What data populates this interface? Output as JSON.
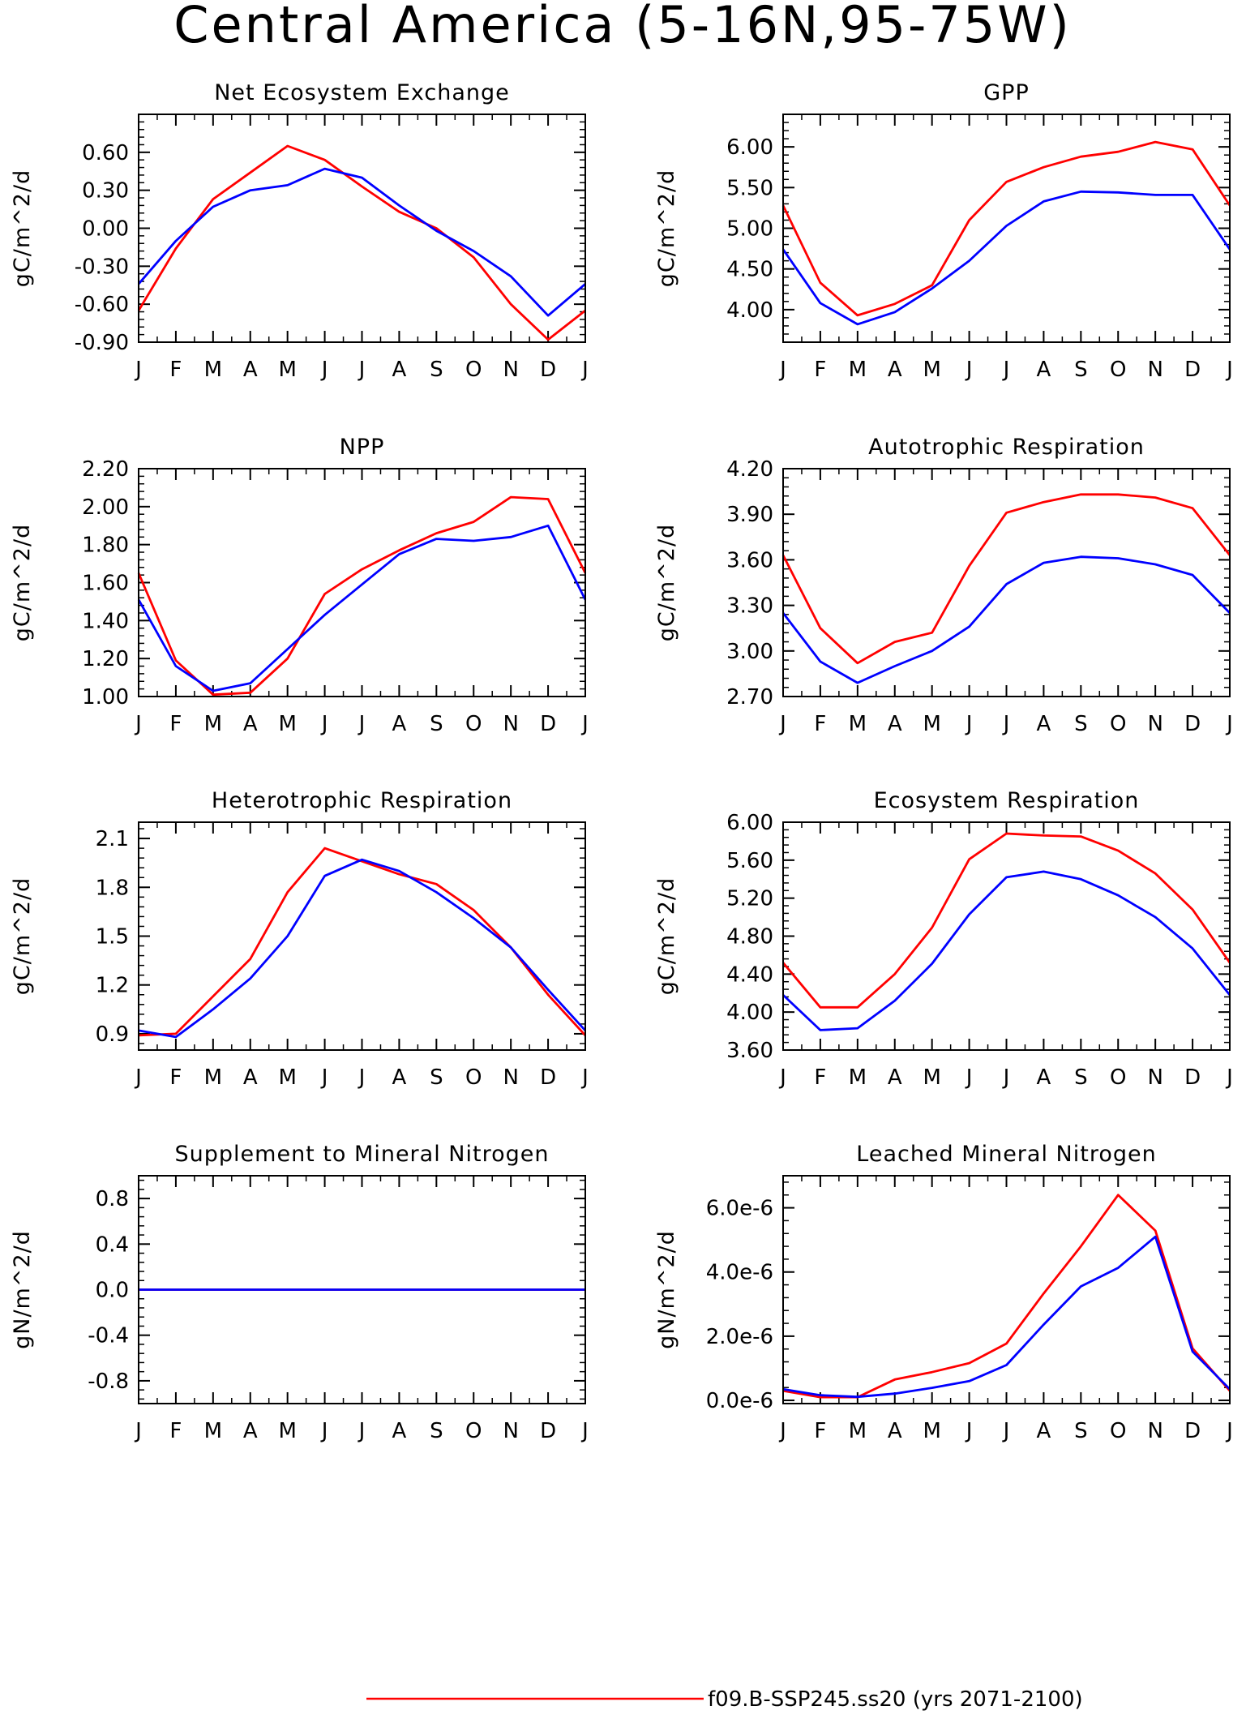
{
  "figure_title": "Central America (5-16N,95-75W)",
  "legend": [
    {
      "label": "f09.B-SSP245.ss20 (yrs 2071-2100)",
      "color": "#ff0000"
    }
  ],
  "colors": {
    "series_red": "#ff0000",
    "series_blue": "#0000ff"
  },
  "chart_data": [
    {
      "type": "line",
      "title": "Net Ecosystem Exchange",
      "ylabel": "gC/m^2/d",
      "categories": [
        "J",
        "F",
        "M",
        "A",
        "M",
        "J",
        "J",
        "A",
        "S",
        "O",
        "N",
        "D",
        "J"
      ],
      "ylim": [
        -0.9,
        0.9
      ],
      "yticks": [
        -0.9,
        -0.6,
        -0.3,
        0.0,
        0.3,
        0.6
      ],
      "ytick_labels": [
        "-0.90",
        "-0.60",
        "-0.30",
        "0.00",
        "0.30",
        "0.60"
      ],
      "series": [
        {
          "color": "#ff0000",
          "values": [
            -0.65,
            -0.16,
            0.23,
            0.44,
            0.65,
            0.54,
            0.33,
            0.13,
            0.0,
            -0.23,
            -0.6,
            -0.88,
            -0.65
          ]
        },
        {
          "color": "#0000ff",
          "values": [
            -0.44,
            -0.1,
            0.17,
            0.3,
            0.34,
            0.47,
            0.4,
            0.18,
            -0.02,
            -0.18,
            -0.38,
            -0.69,
            -0.44
          ]
        }
      ]
    },
    {
      "type": "line",
      "title": "GPP",
      "ylabel": "gC/m^2/d",
      "categories": [
        "J",
        "F",
        "M",
        "A",
        "M",
        "J",
        "J",
        "A",
        "S",
        "O",
        "N",
        "D",
        "J"
      ],
      "ylim": [
        3.6,
        6.4
      ],
      "yticks": [
        4.0,
        4.5,
        5.0,
        5.5,
        6.0
      ],
      "ytick_labels": [
        "4.00",
        "4.50",
        "5.00",
        "5.50",
        "6.00"
      ],
      "series": [
        {
          "color": "#ff0000",
          "values": [
            5.28,
            4.33,
            3.93,
            4.07,
            4.3,
            5.1,
            5.57,
            5.75,
            5.88,
            5.94,
            6.06,
            5.97,
            5.28
          ]
        },
        {
          "color": "#0000ff",
          "values": [
            4.74,
            4.08,
            3.82,
            3.97,
            4.26,
            4.6,
            5.03,
            5.33,
            5.45,
            5.44,
            5.41,
            5.41,
            4.74
          ]
        }
      ]
    },
    {
      "type": "line",
      "title": "NPP",
      "ylabel": "gC/m^2/d",
      "categories": [
        "J",
        "F",
        "M",
        "A",
        "M",
        "J",
        "J",
        "A",
        "S",
        "O",
        "N",
        "D",
        "J"
      ],
      "ylim": [
        1.0,
        2.2
      ],
      "yticks": [
        1.0,
        1.2,
        1.4,
        1.6,
        1.8,
        2.0,
        2.2
      ],
      "ytick_labels": [
        "1.00",
        "1.20",
        "1.40",
        "1.60",
        "1.80",
        "2.00",
        "2.20"
      ],
      "series": [
        {
          "color": "#ff0000",
          "values": [
            1.65,
            1.19,
            1.01,
            1.02,
            1.2,
            1.54,
            1.67,
            1.77,
            1.86,
            1.92,
            2.05,
            2.04,
            1.65
          ]
        },
        {
          "color": "#0000ff",
          "values": [
            1.51,
            1.16,
            1.03,
            1.07,
            1.25,
            1.43,
            1.59,
            1.75,
            1.83,
            1.82,
            1.84,
            1.9,
            1.51
          ]
        }
      ]
    },
    {
      "type": "line",
      "title": "Autotrophic Respiration",
      "ylabel": "gC/m^2/d",
      "categories": [
        "J",
        "F",
        "M",
        "A",
        "M",
        "J",
        "J",
        "A",
        "S",
        "O",
        "N",
        "D",
        "J"
      ],
      "ylim": [
        2.7,
        4.2
      ],
      "yticks": [
        2.7,
        3.0,
        3.3,
        3.6,
        3.9,
        4.2
      ],
      "ytick_labels": [
        "2.70",
        "3.00",
        "3.30",
        "3.60",
        "3.90",
        "4.20"
      ],
      "series": [
        {
          "color": "#ff0000",
          "values": [
            3.63,
            3.15,
            2.92,
            3.06,
            3.12,
            3.56,
            3.91,
            3.98,
            4.03,
            4.03,
            4.01,
            3.94,
            3.63
          ]
        },
        {
          "color": "#0000ff",
          "values": [
            3.25,
            2.93,
            2.79,
            2.9,
            3.0,
            3.16,
            3.44,
            3.58,
            3.62,
            3.61,
            3.57,
            3.5,
            3.25
          ]
        }
      ]
    },
    {
      "type": "line",
      "title": "Heterotrophic Respiration",
      "ylabel": "gC/m^2/d",
      "categories": [
        "J",
        "F",
        "M",
        "A",
        "M",
        "J",
        "J",
        "A",
        "S",
        "O",
        "N",
        "D",
        "J"
      ],
      "ylim": [
        0.8,
        2.2
      ],
      "yticks": [
        0.9,
        1.2,
        1.5,
        1.8,
        2.1
      ],
      "ytick_labels": [
        "0.9",
        "1.2",
        "1.5",
        "1.8",
        "2.1"
      ],
      "series": [
        {
          "color": "#ff0000",
          "values": [
            0.89,
            0.9,
            1.13,
            1.36,
            1.77,
            2.04,
            1.96,
            1.88,
            1.82,
            1.66,
            1.43,
            1.14,
            0.89
          ]
        },
        {
          "color": "#0000ff",
          "values": [
            0.92,
            0.88,
            1.05,
            1.24,
            1.5,
            1.87,
            1.97,
            1.9,
            1.77,
            1.61,
            1.43,
            1.17,
            0.92
          ]
        }
      ]
    },
    {
      "type": "line",
      "title": "Ecosystem Respiration",
      "ylabel": "gC/m^2/d",
      "categories": [
        "J",
        "F",
        "M",
        "A",
        "M",
        "J",
        "J",
        "A",
        "S",
        "O",
        "N",
        "D",
        "J"
      ],
      "ylim": [
        3.6,
        6.0
      ],
      "yticks": [
        3.6,
        4.0,
        4.4,
        4.8,
        5.2,
        5.6,
        6.0
      ],
      "ytick_labels": [
        "3.60",
        "4.00",
        "4.40",
        "4.80",
        "5.20",
        "5.60",
        "6.00"
      ],
      "series": [
        {
          "color": "#ff0000",
          "values": [
            4.52,
            4.05,
            4.05,
            4.4,
            4.89,
            5.61,
            5.88,
            5.86,
            5.85,
            5.7,
            5.46,
            5.08,
            4.52
          ]
        },
        {
          "color": "#0000ff",
          "values": [
            4.18,
            3.81,
            3.83,
            4.12,
            4.51,
            5.03,
            5.42,
            5.48,
            5.4,
            5.23,
            5.0,
            4.67,
            4.18
          ]
        }
      ]
    },
    {
      "type": "line",
      "title": "Supplement to Mineral Nitrogen",
      "ylabel": "gN/m^2/d",
      "categories": [
        "J",
        "F",
        "M",
        "A",
        "M",
        "J",
        "J",
        "A",
        "S",
        "O",
        "N",
        "D",
        "J"
      ],
      "ylim": [
        -1.0,
        1.0
      ],
      "yticks": [
        -0.8,
        -0.4,
        0.0,
        0.4,
        0.8
      ],
      "ytick_labels": [
        "-0.8",
        "-0.4",
        "0.0",
        "0.4",
        "0.8"
      ],
      "series": [
        {
          "color": "#ff0000",
          "values": [
            0,
            0,
            0,
            0,
            0,
            0,
            0,
            0,
            0,
            0,
            0,
            0,
            0
          ]
        },
        {
          "color": "#0000ff",
          "values": [
            0,
            0,
            0,
            0,
            0,
            0,
            0,
            0,
            0,
            0,
            0,
            0,
            0
          ]
        }
      ]
    },
    {
      "type": "line",
      "title": "Leached Mineral Nitrogen",
      "ylabel": "gN/m^2/d",
      "categories": [
        "J",
        "F",
        "M",
        "A",
        "M",
        "J",
        "J",
        "A",
        "S",
        "O",
        "N",
        "D",
        "J"
      ],
      "ylim": [
        -1e-07,
        7e-06
      ],
      "yticks": [
        0.0,
        2e-06,
        4e-06,
        6e-06
      ],
      "ytick_labels": [
        "0.0e-6",
        "2.0e-6",
        "4.0e-6",
        "6.0e-6"
      ],
      "series": [
        {
          "color": "#ff0000",
          "values": [
            3e-07,
            1e-07,
            1e-07,
            6.5e-07,
            8.8e-07,
            1.16e-06,
            1.77e-06,
            3.33e-06,
            4.8e-06,
            6.4e-06,
            5.29e-06,
            1.62e-06,
            3e-07
          ]
        },
        {
          "color": "#0000ff",
          "values": [
            3.5e-07,
            1.6e-07,
            1.1e-07,
            2.1e-07,
            3.9e-07,
            6e-07,
            1.1e-06,
            2.36e-06,
            3.55e-06,
            4.13e-06,
            5.1e-06,
            1.52e-06,
            3.5e-07
          ]
        }
      ]
    }
  ]
}
